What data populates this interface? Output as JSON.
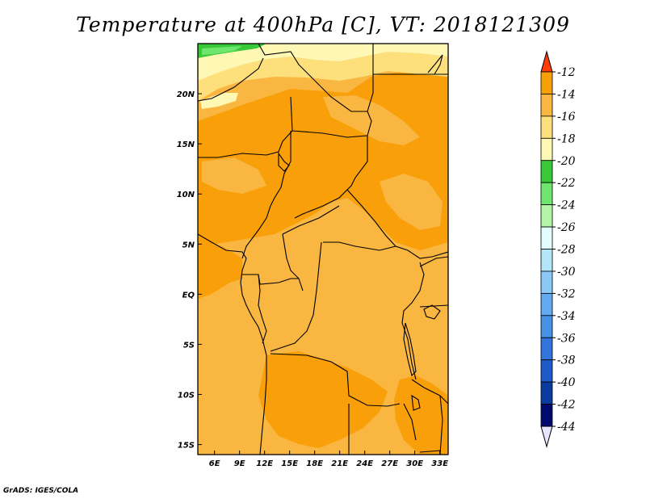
{
  "title": "Temperature at 400hPa [C], VT: 2018121309",
  "credit": "GrADS: IGES/COLA",
  "map": {
    "lon_range": [
      4,
      34
    ],
    "lat_range": [
      -16,
      25
    ],
    "x_tick_labels": [
      "6E",
      "9E",
      "12E",
      "15E",
      "18E",
      "21E",
      "24E",
      "27E",
      "30E",
      "33E"
    ],
    "x_tick_values": [
      6,
      9,
      12,
      15,
      18,
      21,
      24,
      27,
      30,
      33
    ],
    "y_tick_labels": [
      "20N",
      "15N",
      "10N",
      "5N",
      "EQ",
      "5S",
      "10S",
      "15S"
    ],
    "y_tick_values": [
      20,
      15,
      10,
      5,
      0,
      -5,
      -10,
      -15
    ],
    "field_colors": {
      "c_24_22": "#38c838",
      "c_22_20": "#fff7b4",
      "c_20_18": "#fde07c",
      "c_18_16": "#f9b640",
      "c_16_14": "#f99f09"
    }
  },
  "colorbar": {
    "labels": [
      "-12",
      "-14",
      "-16",
      "-18",
      "-20",
      "-22",
      "-24",
      "-26",
      "-28",
      "-30",
      "-32",
      "-34",
      "-36",
      "-38",
      "-40",
      "-42",
      "-44"
    ],
    "colors": [
      "#ff6a00",
      "#f99f09",
      "#f9b640",
      "#fde07c",
      "#fff7b4",
      "#38c838",
      "#6ee66e",
      "#b4f5a8",
      "#e3fcfc",
      "#b4e6fa",
      "#8ac8f5",
      "#64aaf0",
      "#4691e6",
      "#3273dc",
      "#1e5ac8",
      "#0a3ca0",
      "#00096e"
    ],
    "top_arrow_color": "#ff3c0a",
    "bottom_arrow_color": "#e6e6ff"
  }
}
